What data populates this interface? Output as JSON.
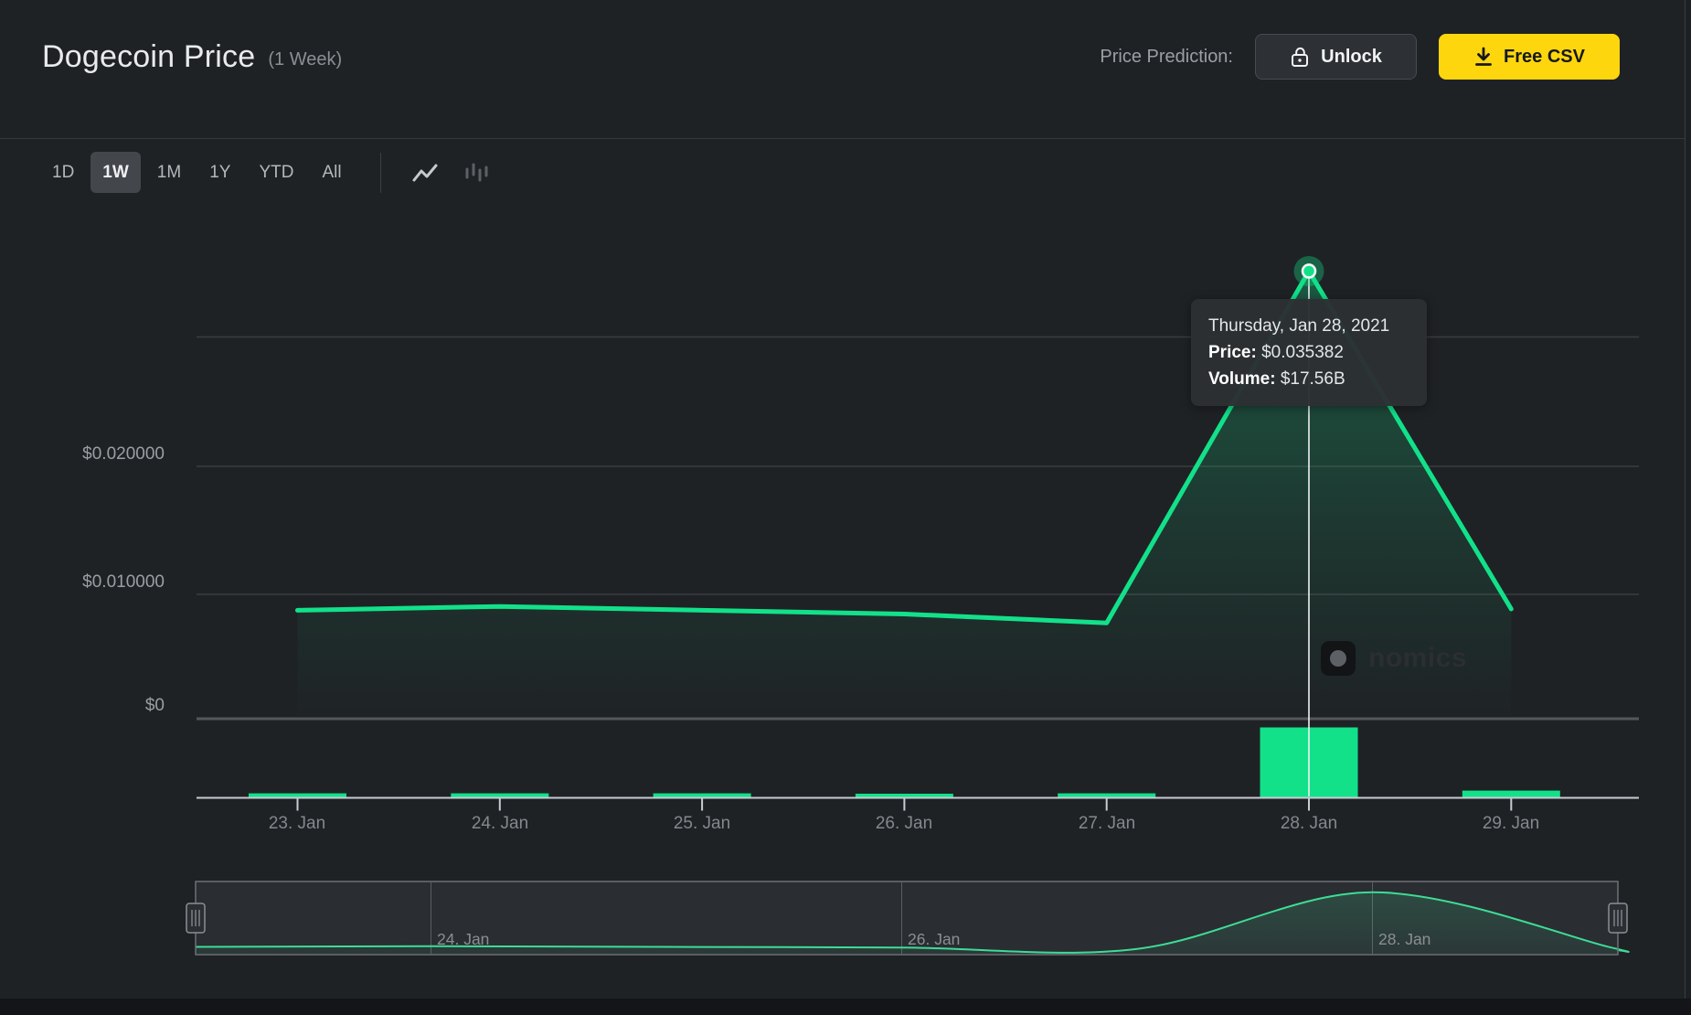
{
  "header": {
    "title": "Dogecoin Price",
    "subtitle": "(1 Week)",
    "price_prediction_label": "Price Prediction:",
    "unlock_label": "Unlock",
    "free_csv_label": "Free CSV"
  },
  "toolbar": {
    "ranges": [
      "1D",
      "1W",
      "1M",
      "1Y",
      "YTD",
      "All"
    ],
    "selected_range": "1W"
  },
  "tooltip": {
    "date": "Thursday, Jan 28, 2021",
    "price_label": "Price:",
    "price_value": "$0.035382",
    "volume_label": "Volume:",
    "volume_value": "$17.56B"
  },
  "watermark": {
    "text": "nomics"
  },
  "chart_data": {
    "type": "line",
    "title": "Dogecoin Price (1 Week)",
    "x": [
      "23. Jan",
      "24. Jan",
      "25. Jan",
      "26. Jan",
      "27. Jan",
      "28. Jan",
      "29. Jan"
    ],
    "series": [
      {
        "name": "Price (USD)",
        "type": "line",
        "values": [
          0.0086,
          0.0089,
          0.0086,
          0.0083,
          0.0076,
          0.035382,
          0.0087
        ]
      },
      {
        "name": "Volume (USD, billions)",
        "type": "bar",
        "values": [
          0.9,
          0.9,
          0.9,
          0.8,
          0.9,
          17.56,
          1.6
        ]
      }
    ],
    "y_axis": {
      "tick_labels_top_to_bottom": [
        "$0.020000",
        "$0.010000",
        "$0"
      ],
      "gridline_values": [
        0.03,
        0.02,
        0.01,
        0
      ],
      "ylim": [
        0,
        0.04
      ]
    },
    "highlight": {
      "index": 5,
      "date": "Thursday, Jan 28, 2021",
      "price": "$0.035382",
      "volume": "$17.56B"
    },
    "navigator_labels": [
      "24. Jan",
      "26. Jan",
      "28. Jan"
    ],
    "legend": "off",
    "colors": {
      "line": "#12e18a",
      "volume_bar": "#12e18a",
      "grid": "#3a3d41",
      "zero_line": "#54575b",
      "axis": "#c9cbd4",
      "crosshair": "#eff1f3",
      "accent_yellow": "#fdd60e",
      "nav_line": "#3ddc97"
    }
  }
}
